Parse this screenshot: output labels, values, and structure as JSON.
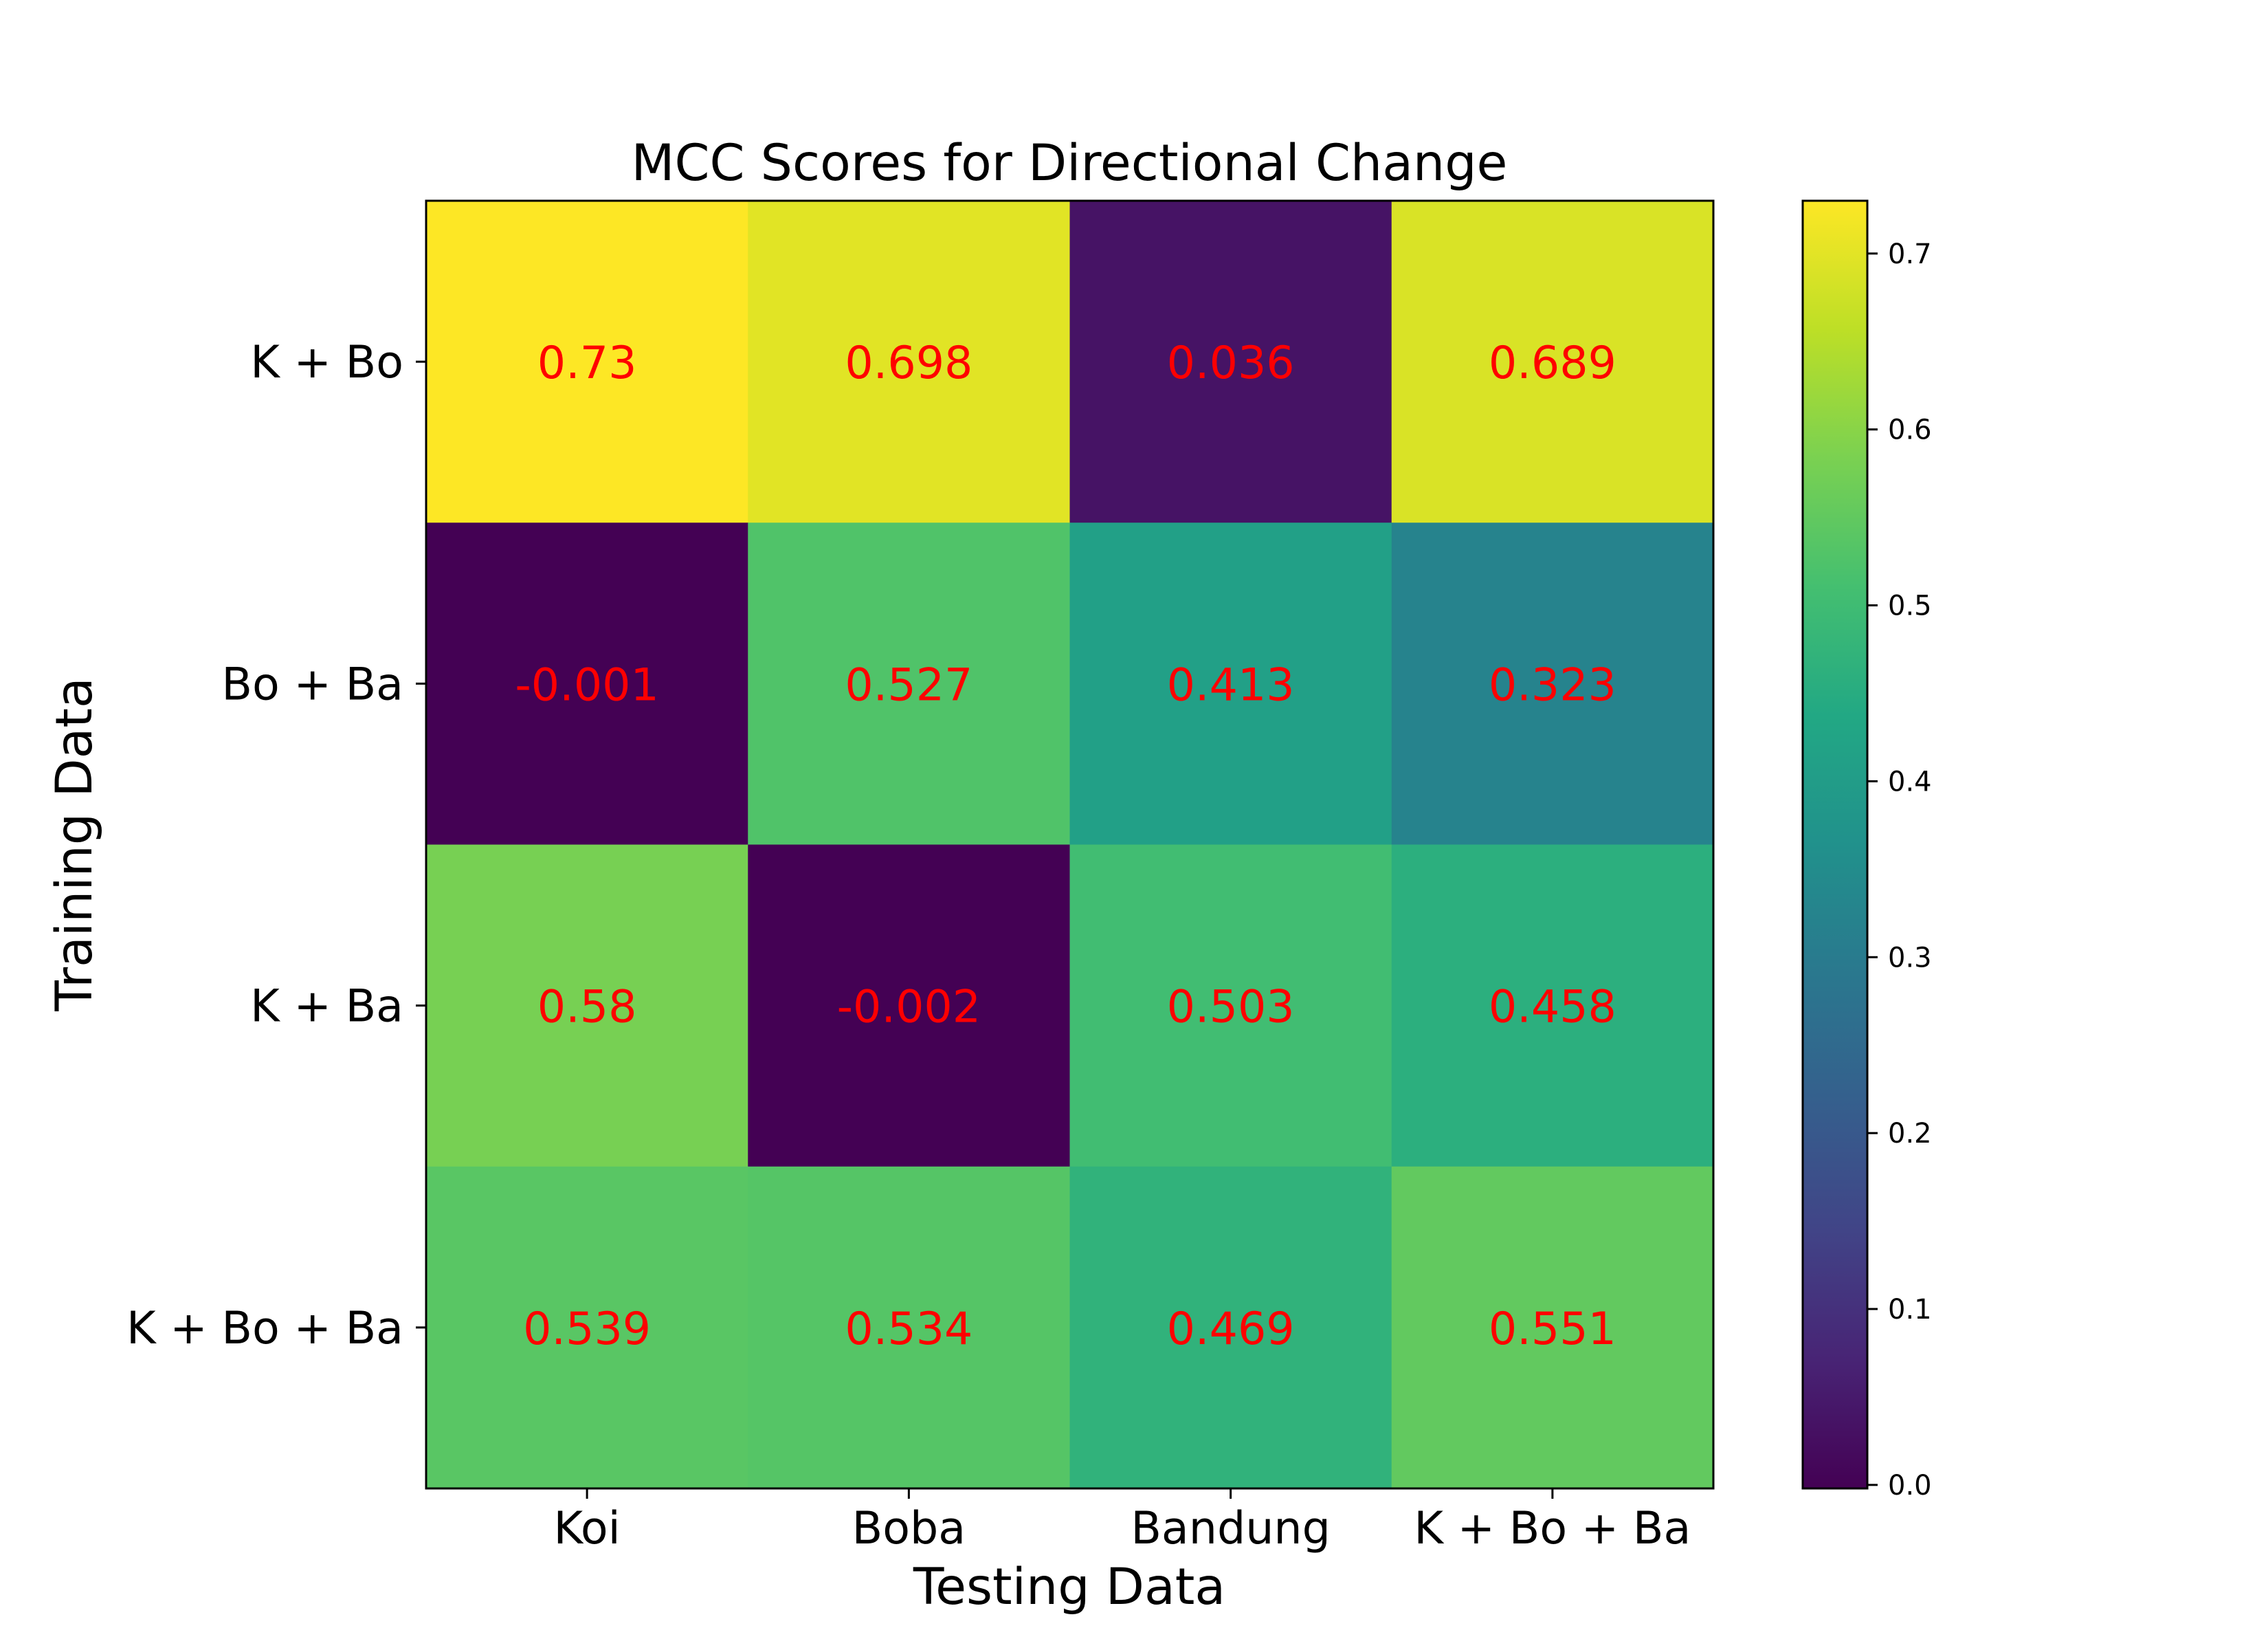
{
  "chart_data": {
    "type": "heatmap",
    "title": "MCC Scores for Directional Change",
    "xlabel": "Testing Data",
    "ylabel": "Training Data",
    "x_categories": [
      "Koi",
      "Boba",
      "Bandung",
      "K + Bo + Ba"
    ],
    "y_categories": [
      "K + Bo",
      "Bo + Ba",
      "K + Ba",
      "K + Bo + Ba"
    ],
    "values": [
      [
        0.73,
        0.698,
        0.036,
        0.689
      ],
      [
        -0.001,
        0.527,
        0.413,
        0.323
      ],
      [
        0.58,
        -0.002,
        0.503,
        0.458
      ],
      [
        0.539,
        0.534,
        0.469,
        0.551
      ]
    ],
    "cell_labels": [
      [
        "0.73",
        "0.698",
        "0.036",
        "0.689"
      ],
      [
        "-0.001",
        "0.527",
        "0.413",
        "0.323"
      ],
      [
        "0.58",
        "-0.002",
        "0.503",
        "0.458"
      ],
      [
        "0.539",
        "0.534",
        "0.469",
        "0.551"
      ]
    ],
    "colormap": "viridis",
    "vmin": -0.002,
    "vmax": 0.73,
    "colorbar_ticks": [
      "0.0",
      "0.1",
      "0.2",
      "0.3",
      "0.4",
      "0.5",
      "0.6",
      "0.7"
    ],
    "annotation_color": "#ff0000",
    "grid": false,
    "legend": "colorbar-right"
  }
}
